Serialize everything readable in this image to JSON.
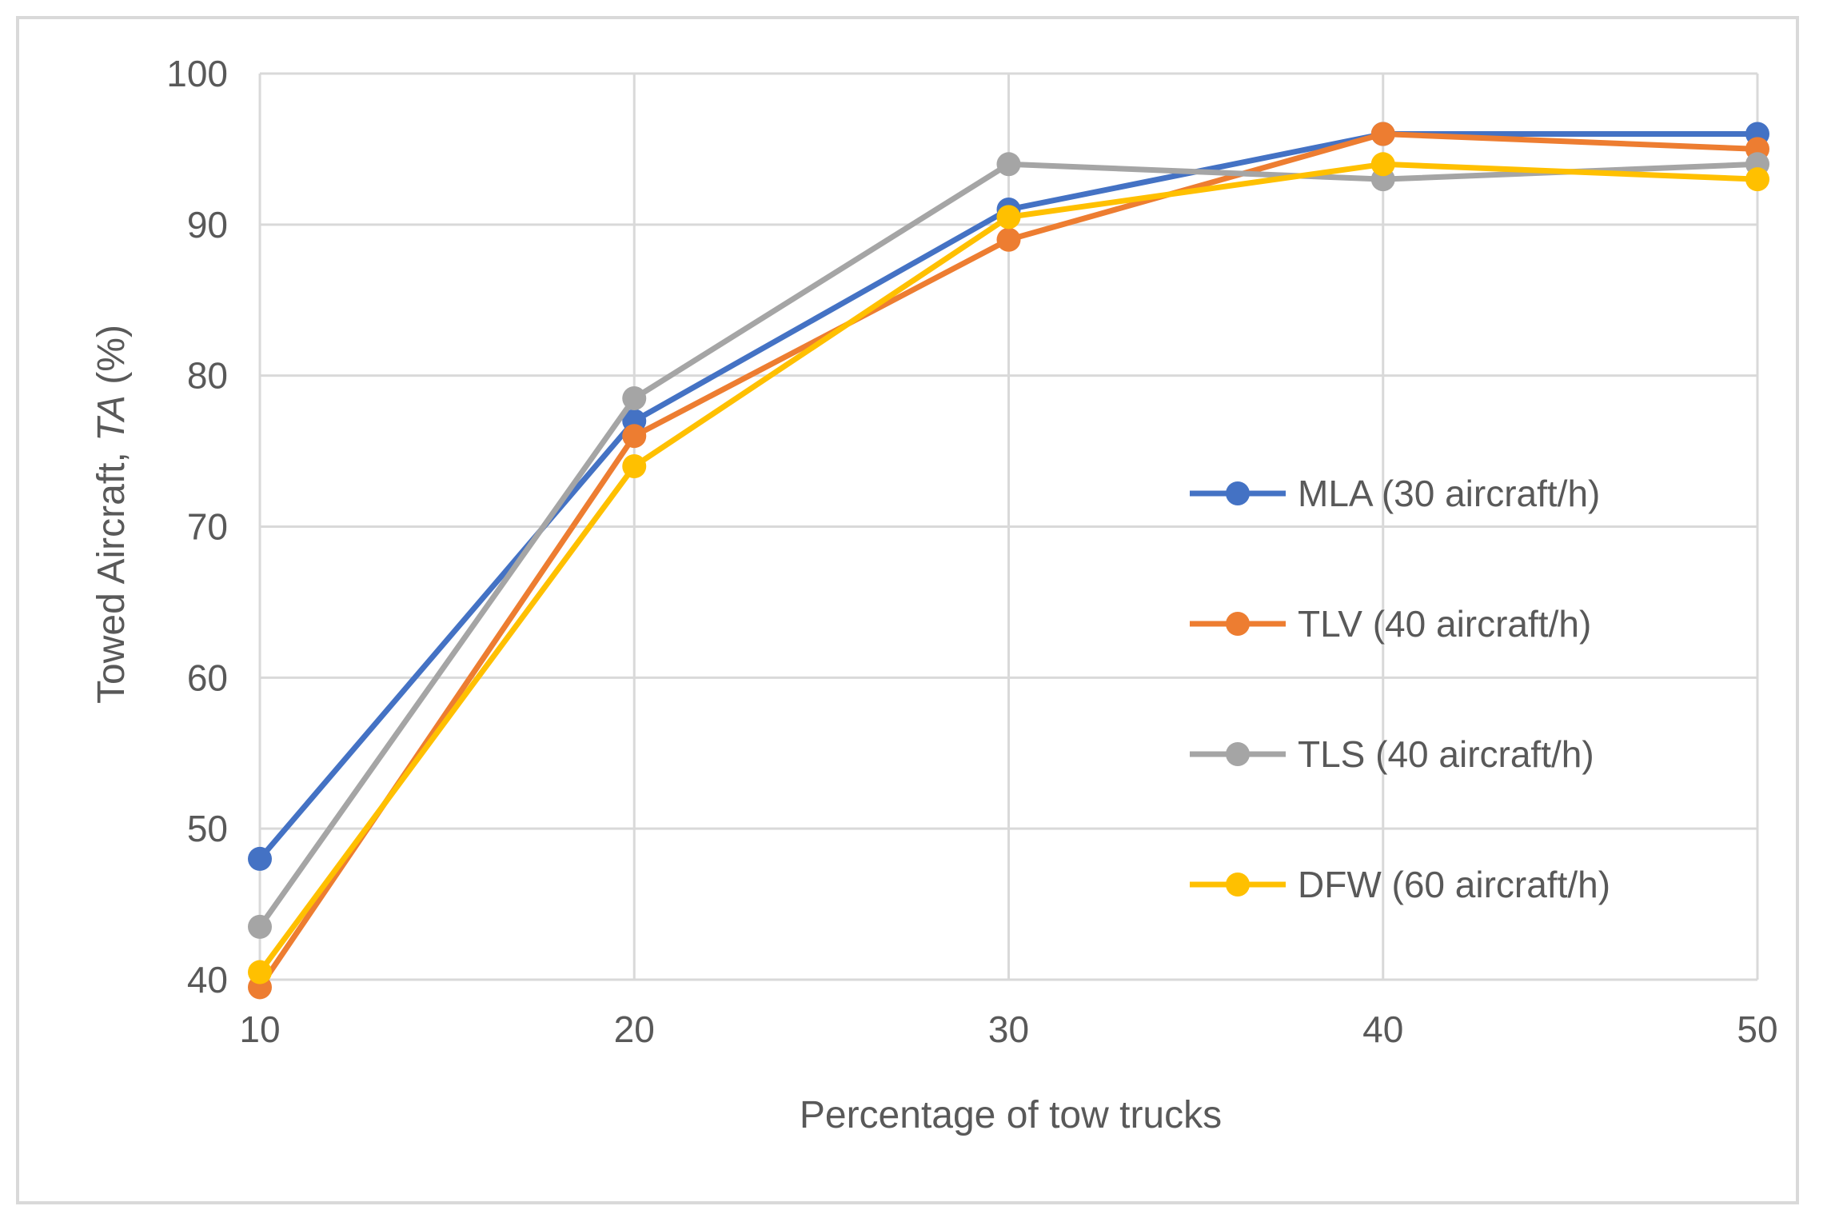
{
  "chart_data": {
    "type": "line",
    "x": [
      10,
      20,
      30,
      40,
      50
    ],
    "xlabel": "Percentage of tow trucks",
    "ylabel_main": "Towed Aircraft, ",
    "ylabel_italic": "TA",
    "ylabel_suffix": " (%)",
    "xlim": [
      10,
      50
    ],
    "ylim": [
      40,
      100
    ],
    "xticks": [
      "10",
      "20",
      "30",
      "40",
      "50"
    ],
    "yticks": [
      "40",
      "50",
      "60",
      "70",
      "80",
      "90",
      "100"
    ],
    "grid": true,
    "legend_position": "right",
    "series": [
      {
        "name": "MLA (30 aircraft/h)",
        "color": "#4472c4",
        "values": [
          48,
          77,
          91,
          96,
          96
        ]
      },
      {
        "name": "TLV (40 aircraft/h)",
        "color": "#ed7d31",
        "values": [
          39.5,
          76,
          89,
          96,
          95
        ]
      },
      {
        "name": "TLS (40 aircraft/h)",
        "color": "#a5a5a5",
        "values": [
          43.5,
          78.5,
          94,
          93,
          94
        ]
      },
      {
        "name": "DFW (60 aircraft/h)",
        "color": "#ffc000",
        "values": [
          40.5,
          74,
          90.5,
          94,
          93
        ]
      }
    ]
  }
}
